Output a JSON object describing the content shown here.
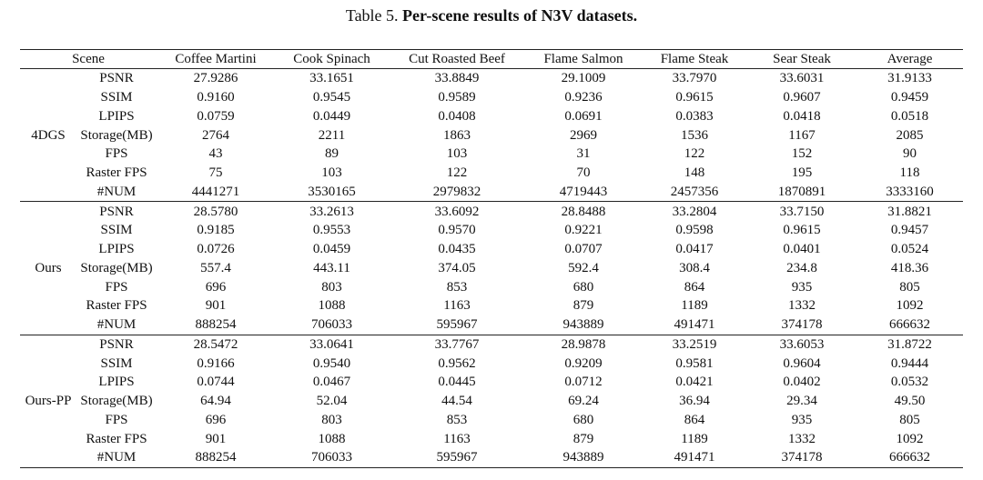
{
  "caption": {
    "label": "Table 5.",
    "title": "Per-scene results of N3V datasets."
  },
  "table": {
    "columns": [
      "Scene",
      "Coffee Martini",
      "Cook Spinach",
      "Cut Roasted Beef",
      "Flame Salmon",
      "Flame Steak",
      "Sear Steak",
      "Average"
    ],
    "groups": [
      {
        "method": "4DGS",
        "rows": [
          {
            "metric": "PSNR",
            "values": [
              "27.9286",
              "33.1651",
              "33.8849",
              "29.1009",
              "33.7970",
              "33.6031",
              "31.9133"
            ]
          },
          {
            "metric": "SSIM",
            "values": [
              "0.9160",
              "0.9545",
              "0.9589",
              "0.9236",
              "0.9615",
              "0.9607",
              "0.9459"
            ]
          },
          {
            "metric": "LPIPS",
            "values": [
              "0.0759",
              "0.0449",
              "0.0408",
              "0.0691",
              "0.0383",
              "0.0418",
              "0.0518"
            ]
          },
          {
            "metric": "Storage(MB)",
            "values": [
              "2764",
              "2211",
              "1863",
              "2969",
              "1536",
              "1167",
              "2085"
            ]
          },
          {
            "metric": "FPS",
            "values": [
              "43",
              "89",
              "103",
              "31",
              "122",
              "152",
              "90"
            ]
          },
          {
            "metric": "Raster FPS",
            "values": [
              "75",
              "103",
              "122",
              "70",
              "148",
              "195",
              "118"
            ]
          },
          {
            "metric": "#NUM",
            "values": [
              "4441271",
              "3530165",
              "2979832",
              "4719443",
              "2457356",
              "1870891",
              "3333160"
            ]
          }
        ]
      },
      {
        "method": "Ours",
        "rows": [
          {
            "metric": "PSNR",
            "values": [
              "28.5780",
              "33.2613",
              "33.6092",
              "28.8488",
              "33.2804",
              "33.7150",
              "31.8821"
            ]
          },
          {
            "metric": "SSIM",
            "values": [
              "0.9185",
              "0.9553",
              "0.9570",
              "0.9221",
              "0.9598",
              "0.9615",
              "0.9457"
            ]
          },
          {
            "metric": "LPIPS",
            "values": [
              "0.0726",
              "0.0459",
              "0.0435",
              "0.0707",
              "0.0417",
              "0.0401",
              "0.0524"
            ]
          },
          {
            "metric": "Storage(MB)",
            "values": [
              "557.4",
              "443.11",
              "374.05",
              "592.4",
              "308.4",
              "234.8",
              "418.36"
            ]
          },
          {
            "metric": "FPS",
            "values": [
              "696",
              "803",
              "853",
              "680",
              "864",
              "935",
              "805"
            ]
          },
          {
            "metric": "Raster FPS",
            "values": [
              "901",
              "1088",
              "1163",
              "879",
              "1189",
              "1332",
              "1092"
            ]
          },
          {
            "metric": "#NUM",
            "values": [
              "888254",
              "706033",
              "595967",
              "943889",
              "491471",
              "374178",
              "666632"
            ]
          }
        ]
      },
      {
        "method": "Ours-PP",
        "rows": [
          {
            "metric": "PSNR",
            "values": [
              "28.5472",
              "33.0641",
              "33.7767",
              "28.9878",
              "33.2519",
              "33.6053",
              "31.8722"
            ]
          },
          {
            "metric": "SSIM",
            "values": [
              "0.9166",
              "0.9540",
              "0.9562",
              "0.9209",
              "0.9581",
              "0.9604",
              "0.9444"
            ]
          },
          {
            "metric": "LPIPS",
            "values": [
              "0.0744",
              "0.0467",
              "0.0445",
              "0.0712",
              "0.0421",
              "0.0402",
              "0.0532"
            ]
          },
          {
            "metric": "Storage(MB)",
            "values": [
              "64.94",
              "52.04",
              "44.54",
              "69.24",
              "36.94",
              "29.34",
              "49.50"
            ]
          },
          {
            "metric": "FPS",
            "values": [
              "696",
              "803",
              "853",
              "680",
              "864",
              "935",
              "805"
            ]
          },
          {
            "metric": "Raster FPS",
            "values": [
              "901",
              "1088",
              "1163",
              "879",
              "1189",
              "1332",
              "1092"
            ]
          },
          {
            "metric": "#NUM",
            "values": [
              "888254",
              "706033",
              "595967",
              "943889",
              "491471",
              "374178",
              "666632"
            ]
          }
        ]
      }
    ]
  }
}
